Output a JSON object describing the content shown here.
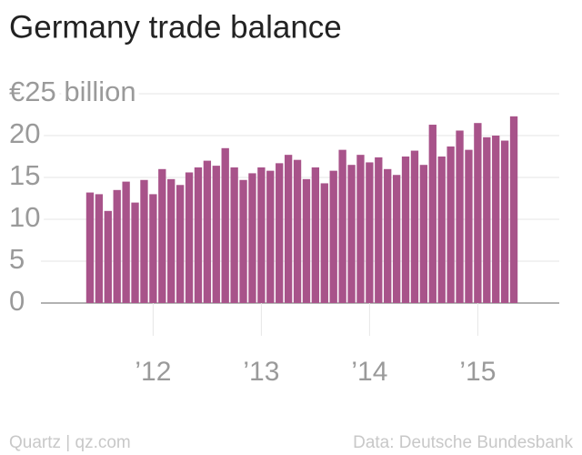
{
  "chart_data": {
    "type": "bar",
    "title": "Germany trade balance",
    "categories": [
      null,
      null,
      null,
      null,
      null,
      null,
      null,
      "’12",
      null,
      null,
      null,
      null,
      null,
      null,
      null,
      null,
      null,
      null,
      null,
      "’13",
      null,
      null,
      null,
      null,
      null,
      null,
      null,
      null,
      null,
      null,
      null,
      "’14",
      null,
      null,
      null,
      null,
      null,
      null,
      null,
      null,
      null,
      null,
      null,
      "’15",
      null,
      null,
      null,
      null
    ],
    "values": [
      13.2,
      13.0,
      11.0,
      13.5,
      14.5,
      12.0,
      14.7,
      13.0,
      16.0,
      14.8,
      14.1,
      15.6,
      16.2,
      17.0,
      16.4,
      18.5,
      16.2,
      14.7,
      15.5,
      16.2,
      15.8,
      16.7,
      17.7,
      17.1,
      14.8,
      16.2,
      14.3,
      15.8,
      18.3,
      16.5,
      17.7,
      16.8,
      17.4,
      16.0,
      15.3,
      17.5,
      18.2,
      16.5,
      21.3,
      17.5,
      18.7,
      20.6,
      18.3,
      21.5,
      19.8,
      20.0,
      19.4,
      22.3
    ],
    "color": "#a8538a",
    "ylim": [
      0,
      25
    ],
    "yticks": [
      0,
      5,
      10,
      15,
      20,
      {
        "value": 25,
        "label": "€25 billion"
      }
    ],
    "grid": true,
    "source": "Data: Deutsche Bundesbank",
    "credit": "Quartz | qz.com"
  }
}
